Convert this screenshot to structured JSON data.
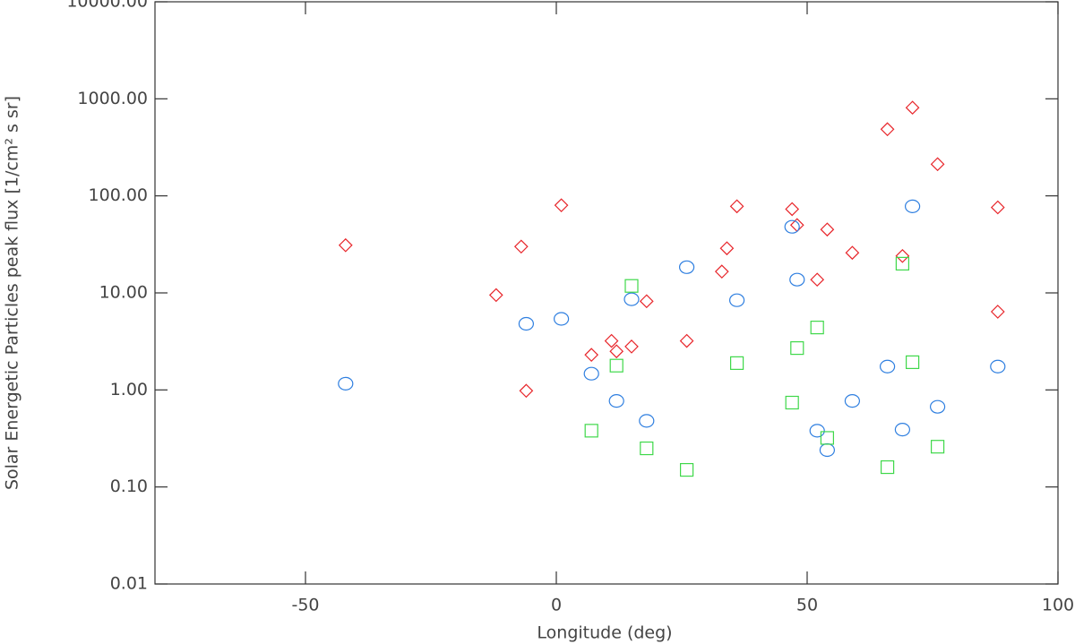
{
  "chart_data": {
    "type": "scatter",
    "xlabel": "Longitude (deg)",
    "ylabel": "Solar Energetic Particles peak flux  [1/cm² s sr]",
    "xlim": [
      -80,
      100
    ],
    "xticks": [
      -50,
      0,
      50,
      100
    ],
    "ylim": [
      0.01,
      10000
    ],
    "ylog": true,
    "yticks": [
      0.01,
      {
        "value": 0.1,
        "label": "0.10"
      },
      {
        "value": 1,
        "label": "1.00"
      },
      {
        "value": 10,
        "label": "10.00"
      },
      {
        "value": 100,
        "label": "100.00"
      },
      {
        "value": 1000,
        "label": "1000.00"
      },
      {
        "value": 10000,
        "label": "10000.00"
      }
    ],
    "grid": false,
    "series": [
      {
        "color": "#e8262b",
        "marker": "diamond",
        "x": [
          -42,
          -12,
          -7,
          -6,
          1,
          7,
          11,
          12,
          15,
          18,
          26,
          33,
          34,
          36,
          47,
          48,
          52,
          54,
          59,
          66,
          69,
          71,
          76,
          88,
          88
        ],
        "values": [
          31,
          9.5,
          30,
          0.98,
          80,
          2.3,
          3.2,
          2.5,
          2.8,
          8.2,
          3.2,
          16.6,
          28.8,
          78,
          73,
          50,
          13.7,
          45,
          25.9,
          486,
          24,
          811,
          212,
          76,
          6.4
        ]
      },
      {
        "color": "#2f7fe0",
        "marker": "circle",
        "x": [
          -42,
          -6,
          1,
          7,
          12,
          15,
          18,
          26,
          36,
          47,
          48,
          52,
          54,
          59,
          66,
          69,
          71,
          76,
          88
        ],
        "values": [
          1.16,
          4.8,
          5.4,
          1.47,
          0.77,
          8.6,
          0.48,
          18.4,
          8.4,
          48,
          13.7,
          0.38,
          0.24,
          0.77,
          1.74,
          0.39,
          78,
          0.67,
          1.74
        ]
      },
      {
        "color": "#3fd84a",
        "marker": "square",
        "x": [
          7,
          12,
          15,
          18,
          26,
          36,
          47,
          48,
          52,
          54,
          66,
          69,
          71,
          76
        ],
        "values": [
          0.38,
          1.78,
          11.8,
          0.25,
          0.15,
          1.89,
          0.74,
          2.7,
          4.4,
          0.32,
          0.16,
          20,
          1.93,
          0.26
        ]
      }
    ]
  }
}
